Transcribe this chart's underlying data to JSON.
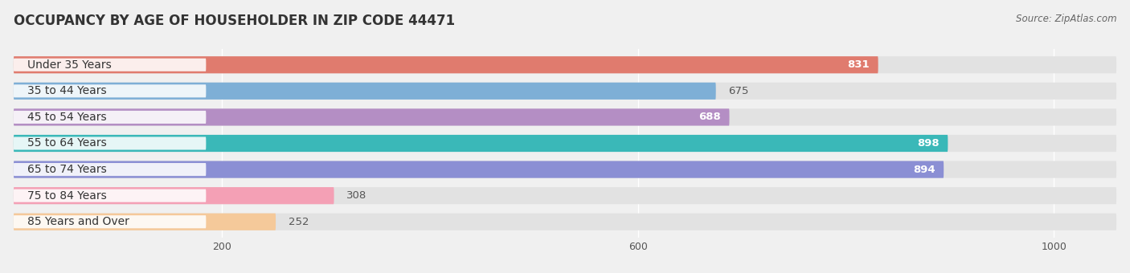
{
  "title": "OCCUPANCY BY AGE OF HOUSEHOLDER IN ZIP CODE 44471",
  "source": "Source: ZipAtlas.com",
  "categories": [
    "Under 35 Years",
    "35 to 44 Years",
    "45 to 54 Years",
    "55 to 64 Years",
    "65 to 74 Years",
    "75 to 84 Years",
    "85 Years and Over"
  ],
  "values": [
    831,
    675,
    688,
    898,
    894,
    308,
    252
  ],
  "bar_colors": [
    "#e07b6e",
    "#7eafd6",
    "#b48ec4",
    "#3ab8b8",
    "#8b8fd4",
    "#f4a0b5",
    "#f5c99a"
  ],
  "value_colors_white": [
    true,
    false,
    true,
    true,
    true,
    false,
    false
  ],
  "xlim_max": 1060,
  "xticks": [
    200,
    600,
    1000
  ],
  "title_fontsize": 12,
  "label_fontsize": 10,
  "value_fontsize": 9.5,
  "bar_height": 0.65,
  "background_color": "#f0f0f0",
  "bar_background_color": "#e2e2e2",
  "label_bg_color": "#ffffff"
}
